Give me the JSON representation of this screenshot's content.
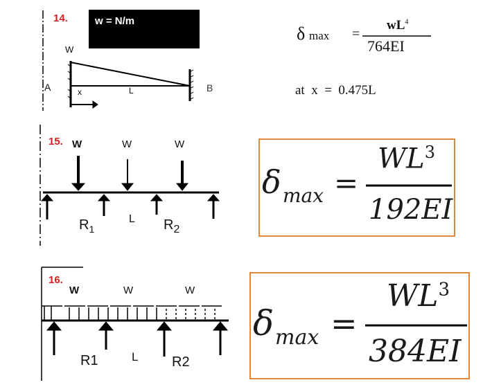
{
  "problems": [
    {
      "number": "14.",
      "load_box": "w = N/m",
      "diagram_labels": {
        "load": "W",
        "left": "A",
        "right": "B",
        "x": "x",
        "length": "L"
      },
      "formula": {
        "lhs": "δ",
        "lhs_sub": "max",
        "eq": "=",
        "numerator": "wL",
        "num_exp": "4",
        "denominator": "764EI"
      },
      "location": "at  x  =  0.475L"
    },
    {
      "number": "15.",
      "diagram_labels": {
        "loads": [
          "W",
          "W",
          "W"
        ],
        "r1": "R",
        "r1_sub": "1",
        "length": "L",
        "r2": "R",
        "r2_sub": "2"
      },
      "formula": {
        "lhs": "δ",
        "lhs_sub": "max",
        "eq": "=",
        "numerator": "WL",
        "num_exp": "3",
        "denominator": "192EI"
      },
      "border_color": "#e0883a"
    },
    {
      "number": "16.",
      "diagram_labels": {
        "loads": [
          "W",
          "W",
          "W"
        ],
        "r1": "R1",
        "length": "L",
        "r2": "R2"
      },
      "formula": {
        "lhs": "δ",
        "lhs_sub": "max",
        "eq": "=",
        "numerator": "WL",
        "num_exp": "3",
        "denominator": "384EI"
      },
      "border_color": "#e0883a"
    }
  ],
  "colors": {
    "number_red": "#d42020",
    "box_orange": "#e0883a"
  }
}
